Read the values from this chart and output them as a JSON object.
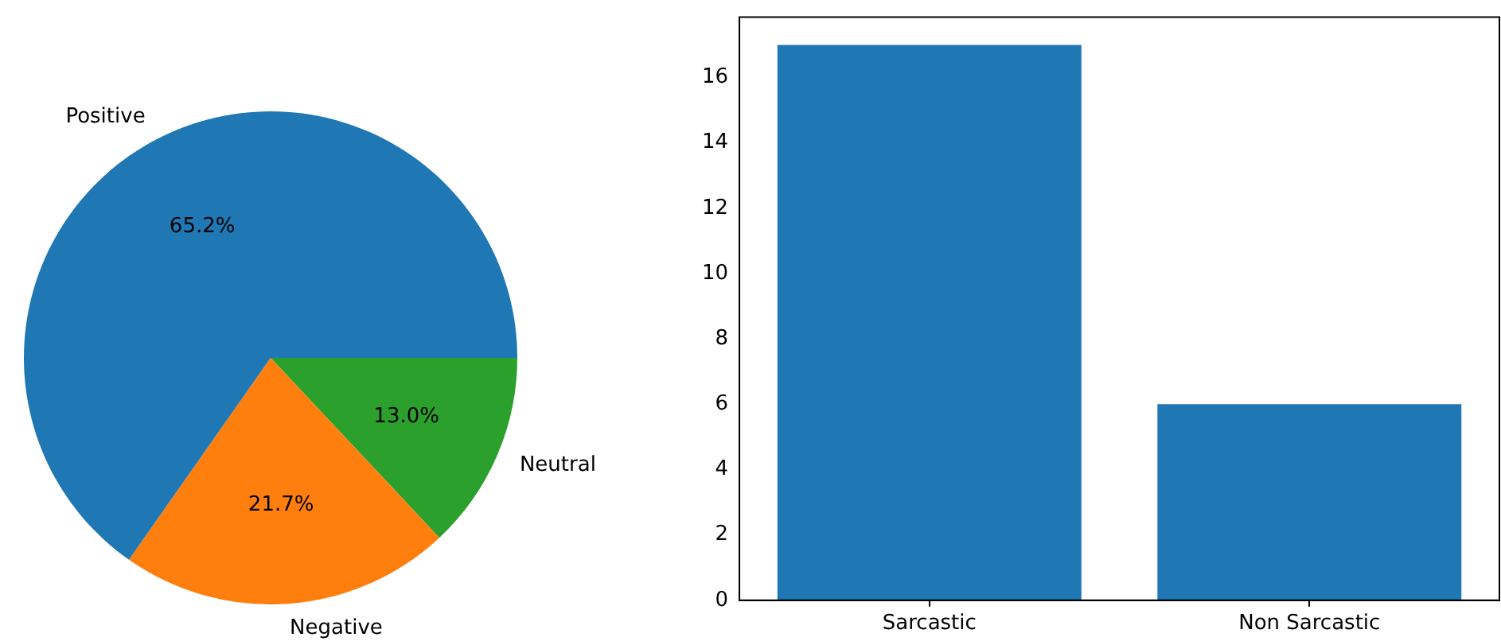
{
  "chart_data": [
    {
      "type": "pie",
      "categories": [
        "Positive",
        "Negative",
        "Neutral"
      ],
      "values": [
        65.2,
        21.7,
        13.0
      ],
      "colors": [
        "#1f77b4",
        "#ff7f0e",
        "#2ca02c"
      ],
      "value_labels": [
        "65.2%",
        "21.7%",
        "13.0%"
      ]
    },
    {
      "type": "bar",
      "categories": [
        "Sarcastic",
        "Non Sarcastic"
      ],
      "values": [
        17,
        6
      ],
      "color": "#1f77b4",
      "ylim": [
        0,
        17.85
      ],
      "yticks": [
        0,
        2,
        4,
        6,
        8,
        10,
        12,
        14,
        16
      ]
    }
  ]
}
